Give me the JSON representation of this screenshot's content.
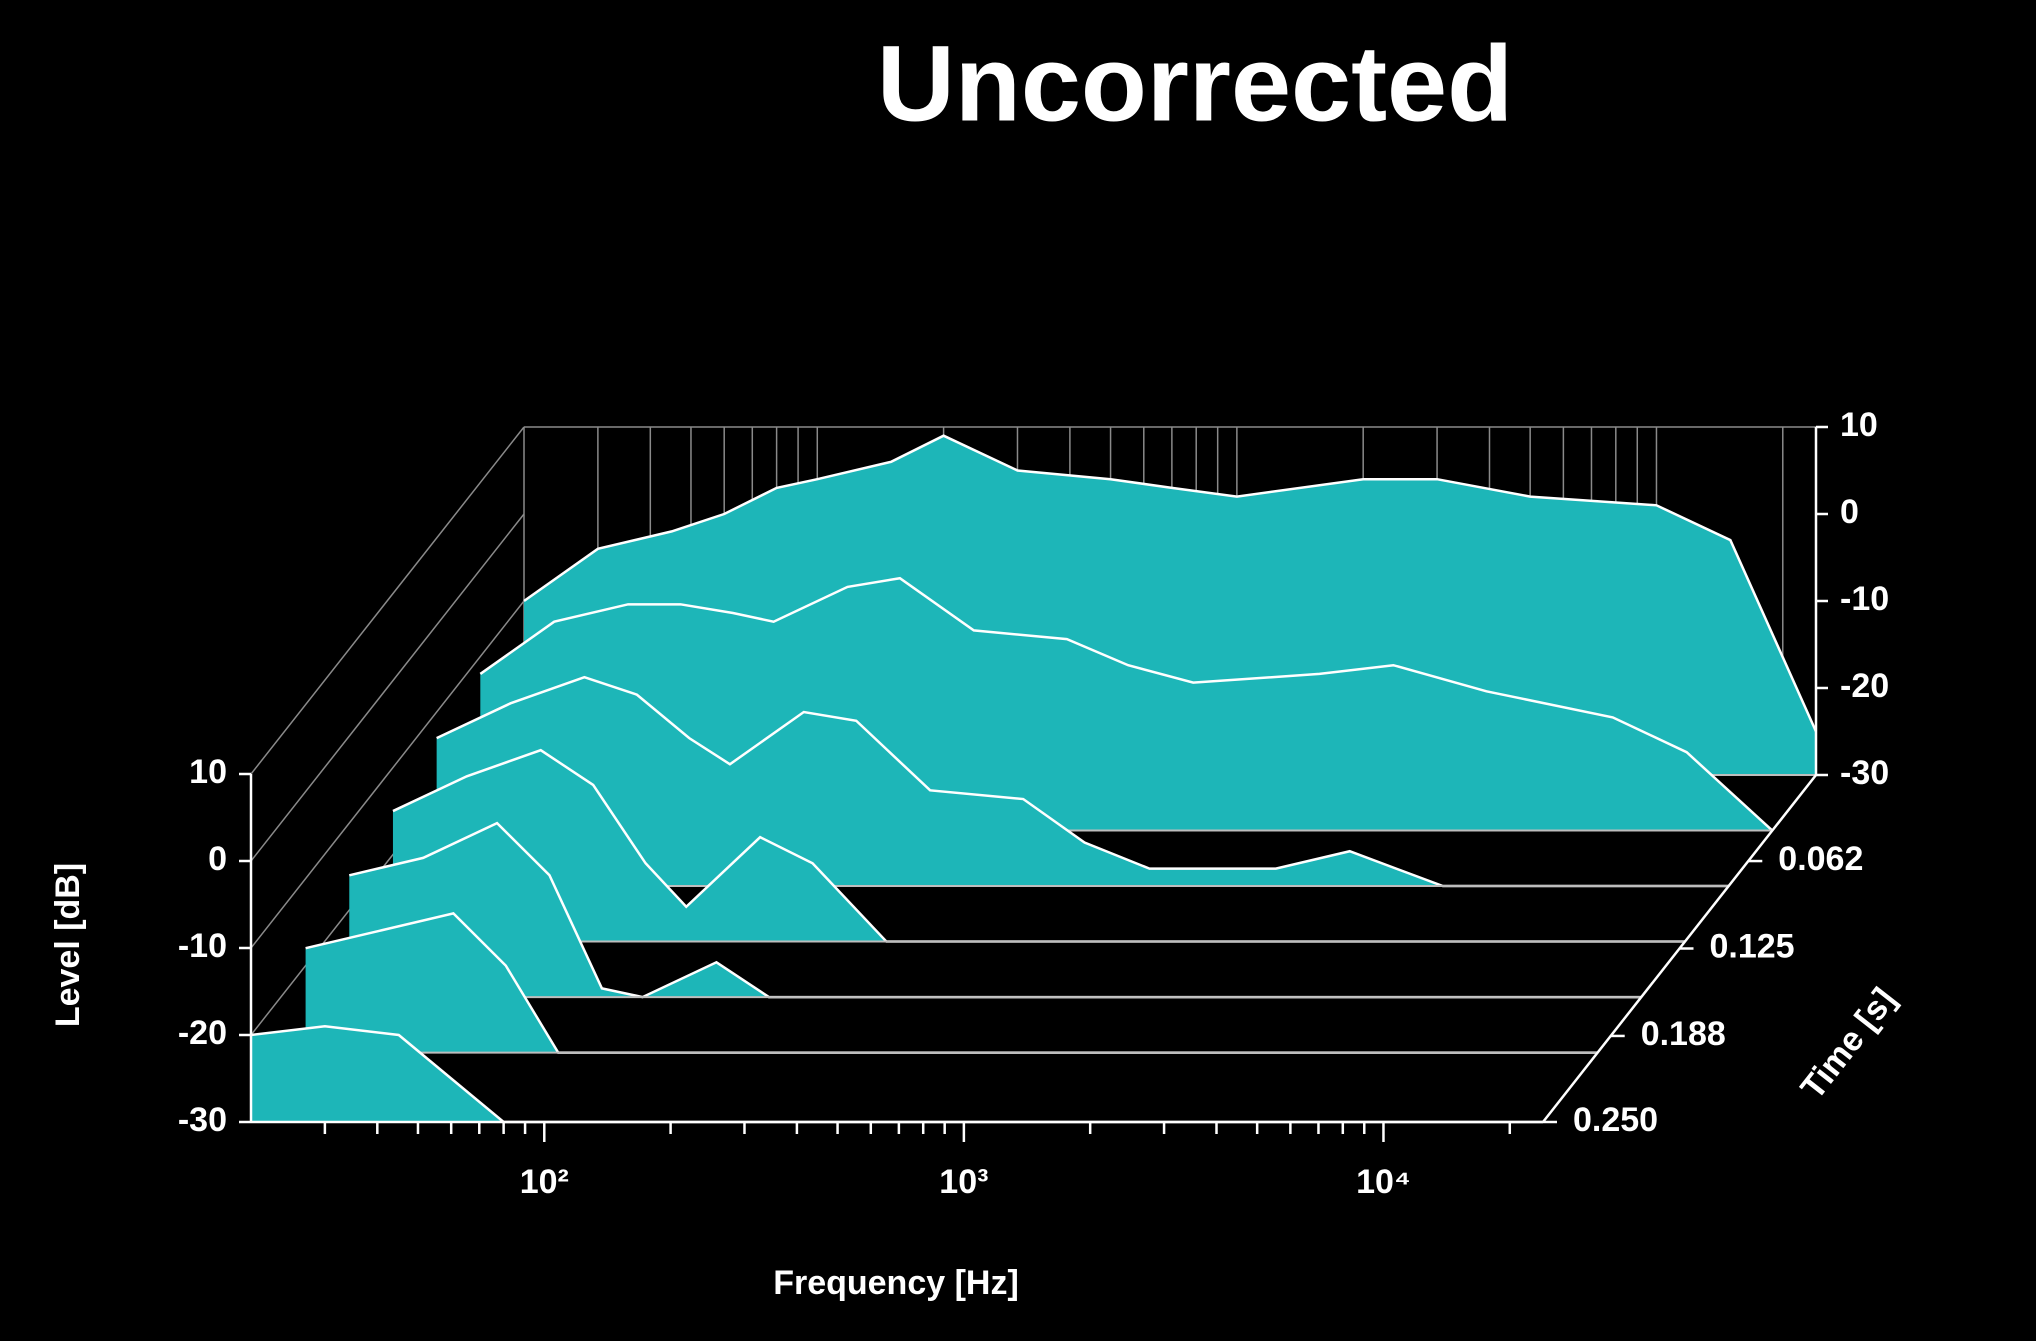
{
  "chart_data": {
    "type": "waterfall",
    "title": "Uncorrected",
    "x_label": "Frequency [Hz]",
    "y_label": "Level [dB]",
    "z_label": "Time [s]",
    "log_x": true,
    "color": "#1db6b8",
    "line_color": "#ffffff",
    "xlim": [
      20,
      24000
    ],
    "xticks": [
      {
        "value": 100,
        "label": "10²"
      },
      {
        "value": 1000,
        "label": "10³"
      },
      {
        "value": 10000,
        "label": "10⁴"
      }
    ],
    "xminor": [
      30,
      40,
      50,
      60,
      70,
      80,
      90,
      200,
      300,
      400,
      500,
      600,
      700,
      800,
      900,
      2000,
      3000,
      4000,
      5000,
      6000,
      7000,
      8000,
      9000,
      20000
    ],
    "ylim": [
      -30,
      10
    ],
    "yticks": [
      -30,
      -20,
      -10,
      0,
      10
    ],
    "zlim": [
      0,
      0.25
    ],
    "zticks": [
      0.062,
      0.125,
      0.188,
      {
        "value": 0.25,
        "label": "0.250"
      }
    ],
    "x": [
      20,
      30,
      45,
      60,
      80,
      100,
      150,
      200,
      300,
      500,
      700,
      1000,
      2000,
      3000,
      5000,
      10000,
      15000,
      24000
    ],
    "series": [
      {
        "z": 0,
        "values": [
          -10,
          -4,
          -2,
          0,
          3,
          4,
          6,
          9,
          5,
          4,
          3,
          2,
          4,
          4,
          2,
          1,
          -3,
          -25
        ]
      },
      {
        "z": 0.04,
        "values": [
          -12,
          -6,
          -4,
          -4,
          -5,
          -6,
          -2,
          -1,
          -7,
          -8,
          -11,
          -13,
          -12,
          -11,
          -14,
          -17,
          -21,
          -30
        ]
      },
      {
        "z": 0.08,
        "values": [
          -13,
          -9,
          -6,
          -8,
          -13,
          -16,
          -10,
          -11,
          -19,
          -20,
          -25,
          -28,
          -28,
          -26,
          -30,
          -30,
          -30,
          -30
        ]
      },
      {
        "z": 0.12,
        "values": [
          -15,
          -11,
          -8,
          -12,
          -21,
          -26,
          -18,
          -21,
          -30,
          -30,
          -30,
          -30,
          -30,
          -30,
          -30,
          -30,
          -30,
          -30
        ]
      },
      {
        "z": 0.16,
        "values": [
          -16,
          -14,
          -10,
          -16,
          -29,
          -30,
          -26,
          -30,
          -30,
          -30,
          -30,
          -30,
          -30,
          -30,
          -30,
          -30,
          -30,
          -30
        ]
      },
      {
        "z": 0.2,
        "values": [
          -18,
          -16,
          -14,
          -20,
          -30,
          -30,
          -30,
          -30,
          -30,
          -30,
          -30,
          -30,
          -30,
          -30,
          -30,
          -30,
          -30,
          -30
        ]
      },
      {
        "z": 0.25,
        "values": [
          -20,
          -19,
          -20,
          -25,
          -30,
          -30,
          -30,
          -30,
          -30,
          -30,
          -30,
          -30,
          -30,
          -30,
          -30,
          -30,
          -30,
          -30
        ]
      }
    ]
  }
}
